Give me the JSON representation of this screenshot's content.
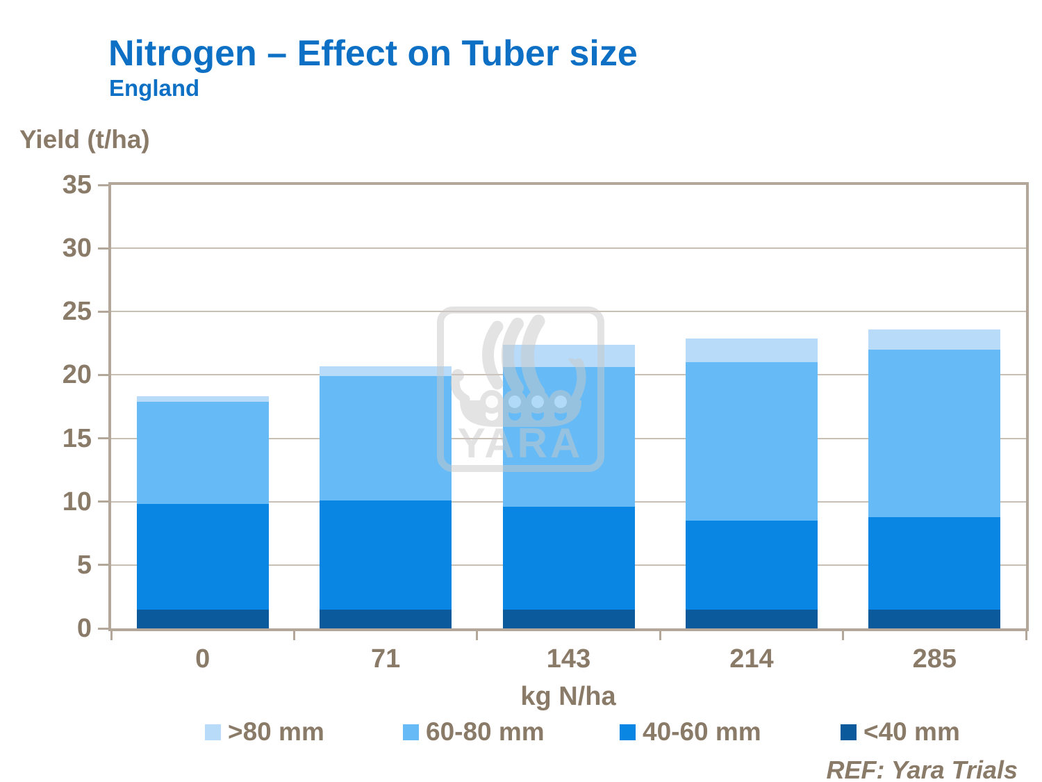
{
  "header": {
    "title": "Nitrogen – Effect on Tuber size",
    "subtitle": "England"
  },
  "chart_data": {
    "type": "bar",
    "stacked": true,
    "title": "Nitrogen – Effect on Tuber size",
    "subtitle": "England",
    "ylabel": "Yield (t/ha)",
    "xlabel": "kg N/ha",
    "categories": [
      "0",
      "71",
      "143",
      "214",
      "285"
    ],
    "series": [
      {
        "name": "<40 mm",
        "color": "#0A5A9C",
        "values": [
          1.5,
          1.5,
          1.5,
          1.5,
          1.5
        ]
      },
      {
        "name": "40-60 mm",
        "color": "#0986E4",
        "values": [
          8.3,
          8.6,
          8.1,
          7.0,
          7.3
        ]
      },
      {
        "name": "60-80 mm",
        "color": "#66BBF7",
        "values": [
          8.1,
          9.8,
          11.0,
          12.5,
          13.2
        ]
      },
      {
        "name": ">80 mm",
        "color": "#B7DBF8",
        "values": [
          0.4,
          0.8,
          1.8,
          1.9,
          1.6
        ]
      }
    ],
    "totals": [
      18.3,
      20.7,
      22.4,
      22.9,
      23.6
    ],
    "ylim": [
      0,
      35
    ],
    "yticks": [
      0,
      5,
      10,
      15,
      20,
      25,
      30,
      35
    ],
    "grid": true,
    "legend_position": "bottom",
    "legend_order": [
      ">80 mm",
      "60-80 mm",
      "40-60 mm",
      "<40 mm"
    ]
  },
  "watermark": {
    "text": "YARA",
    "icon": "viking-ship-icon"
  },
  "footer": {
    "ref": "REF: Yara Trials"
  },
  "colors": {
    "title_blue": "#0D70C4",
    "axis_text_brown": "#8A7A68",
    "axis_line_tan": "#B3A79A",
    "gridline": "#C9C0B5",
    "watermark_gray": "#C9C9C9"
  }
}
